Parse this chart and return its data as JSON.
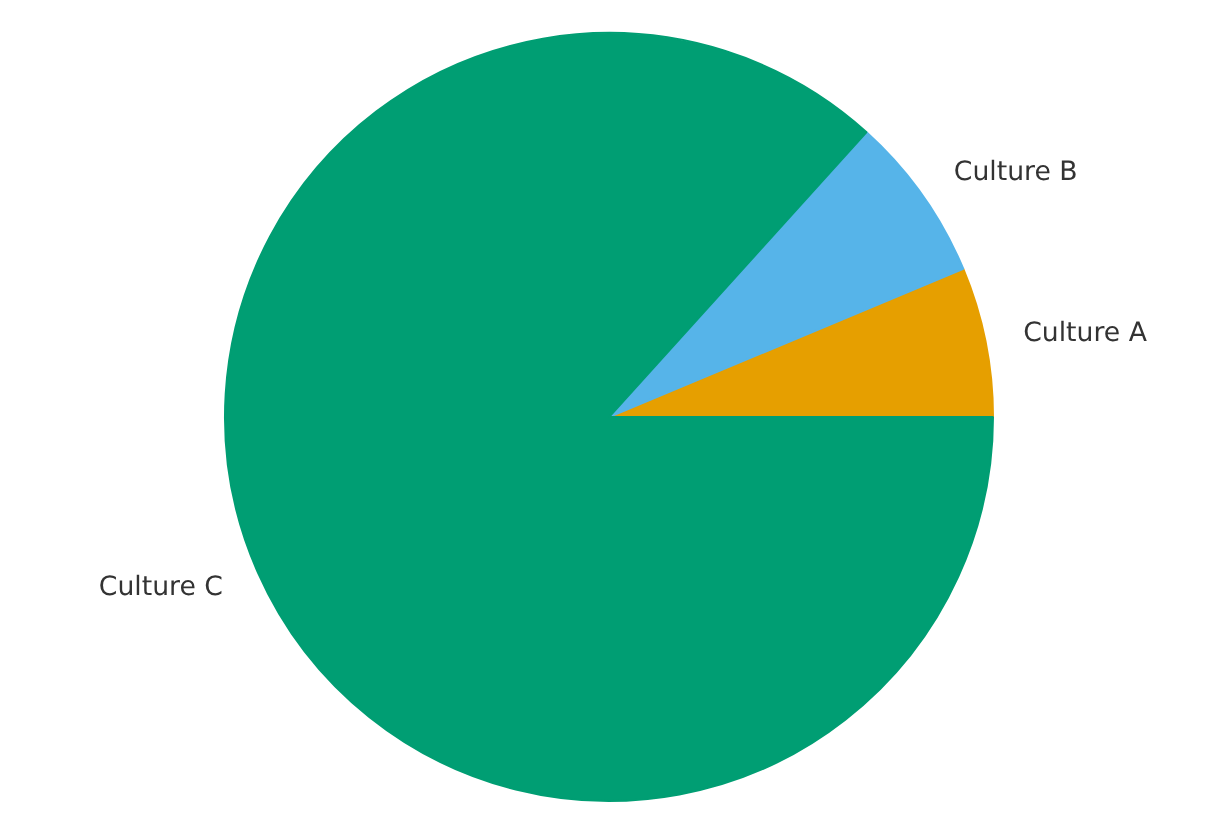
{
  "chart_data": {
    "type": "pie",
    "categories": [
      "Culture A",
      "Culture B",
      "Culture C"
    ],
    "values": [
      6.3,
      7.0,
      86.7
    ],
    "colors": [
      "#e69f00",
      "#56b4e9",
      "#009e73"
    ]
  }
}
